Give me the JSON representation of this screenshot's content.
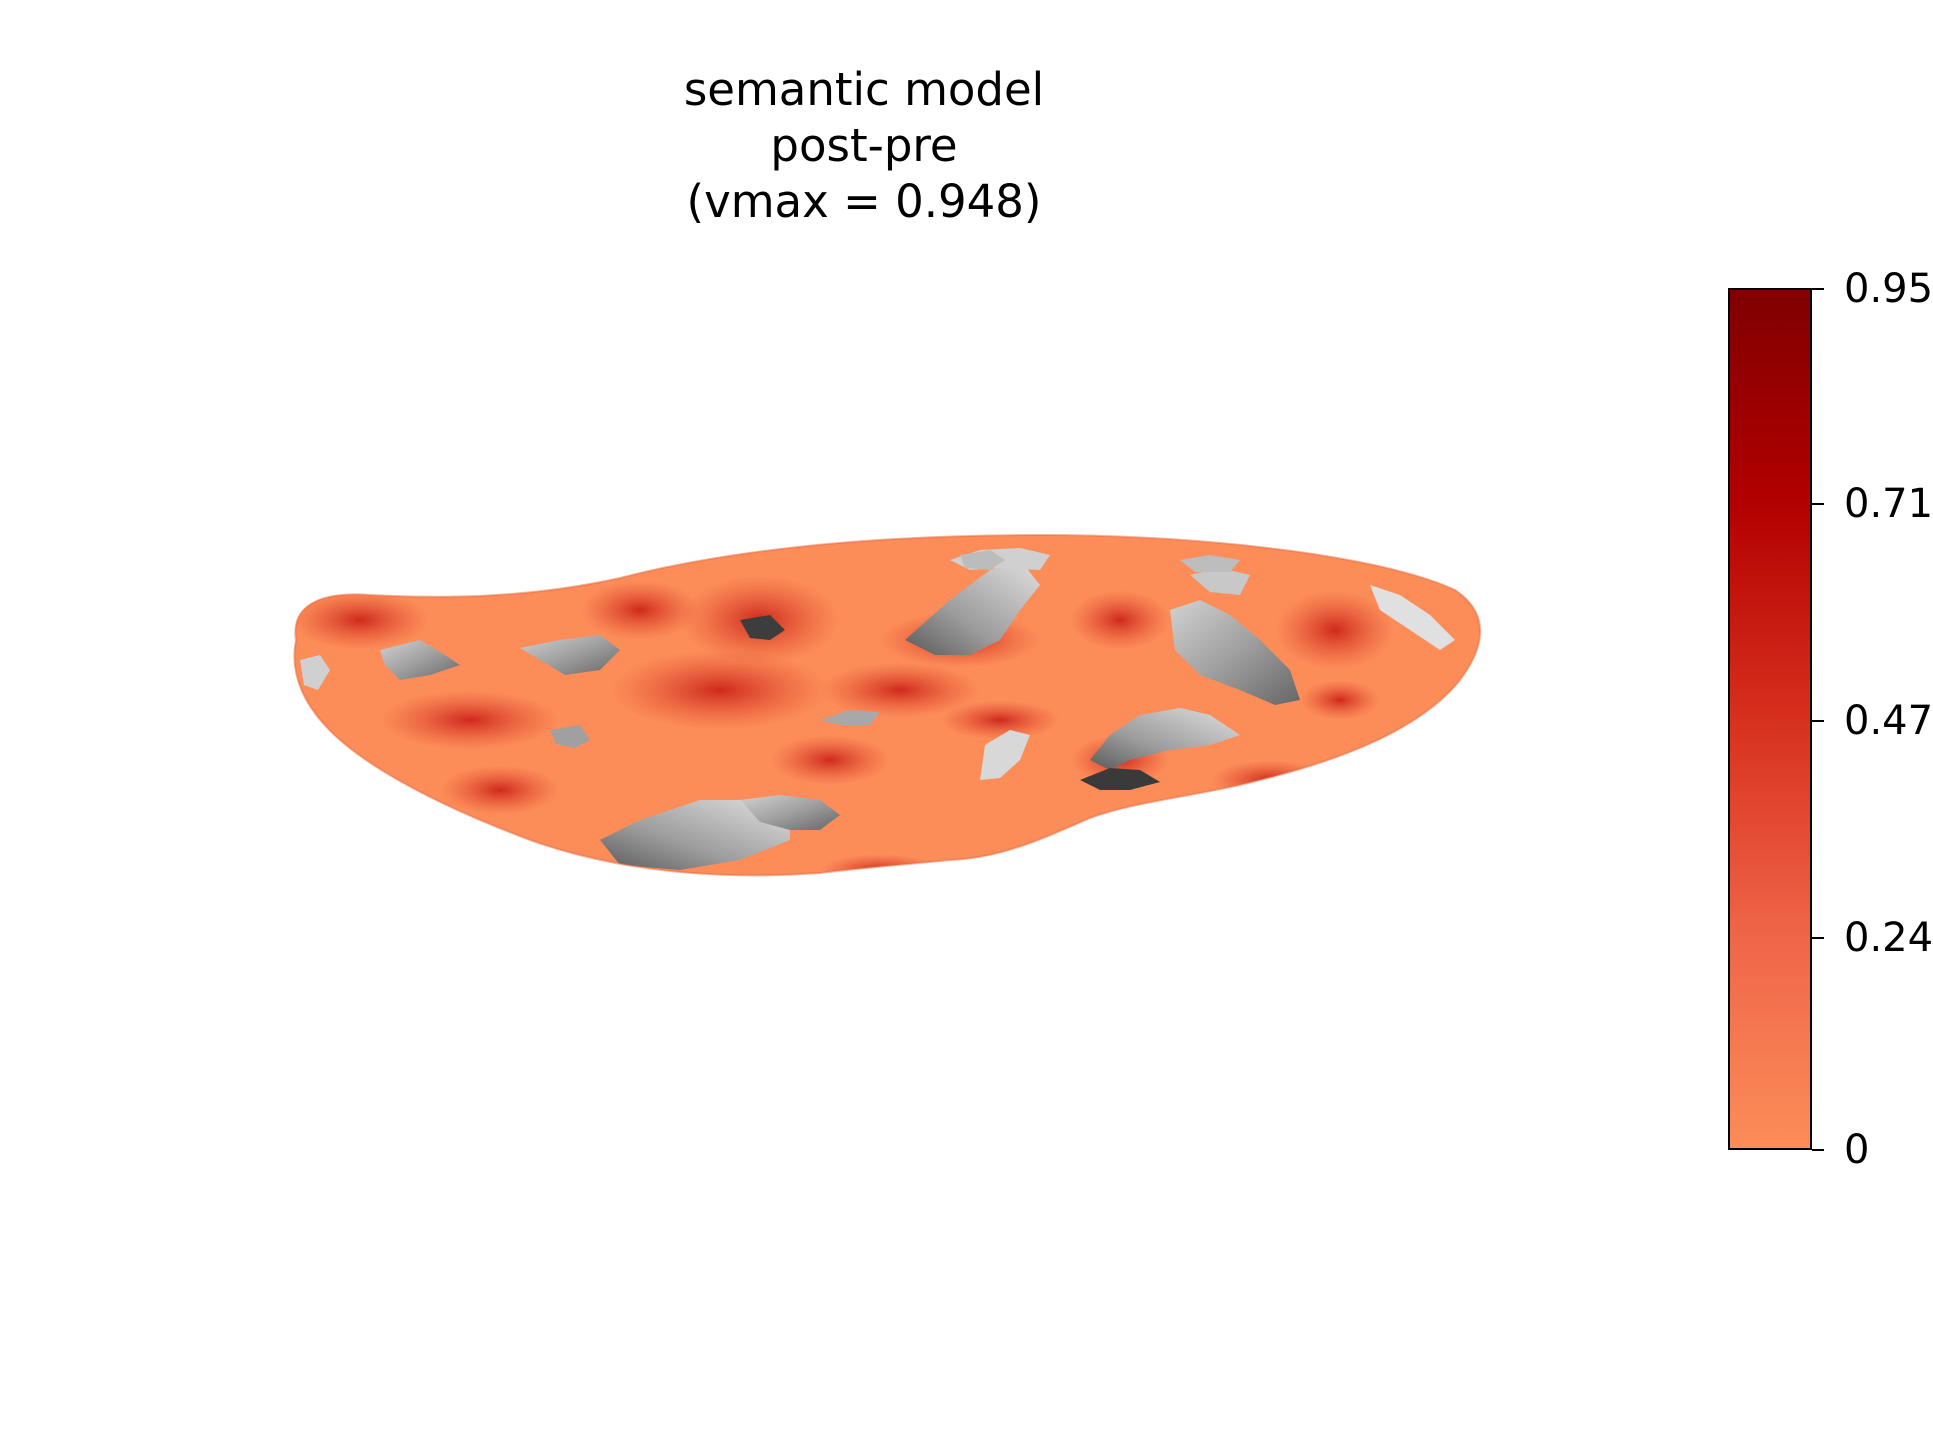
{
  "figure": {
    "title_lines": [
      "semantic model",
      "post-pre",
      "(vmax = 0.948)"
    ],
    "surface_label": "inflated cortical surface (lateral view)"
  },
  "colorbar": {
    "cmap_colors": [
      "#fc8d59",
      "#e34a33",
      "#c91d13",
      "#b30000",
      "#7f0000"
    ],
    "ticks": [
      {
        "value": 0,
        "label": "0"
      },
      {
        "value": 0.237,
        "label": "0.24"
      },
      {
        "value": 0.474,
        "label": "0.47"
      },
      {
        "value": 0.711,
        "label": "0.71"
      },
      {
        "value": 0.948,
        "label": "0.95"
      }
    ],
    "vmin": 0,
    "vmax": 0.948
  },
  "colors": {
    "base_surface": "#fc8d59",
    "high_surface": "#c92a1c",
    "inactive_light": "#c8c8c8",
    "inactive_mid": "#9a9a9a",
    "inactive_dark": "#555555"
  }
}
